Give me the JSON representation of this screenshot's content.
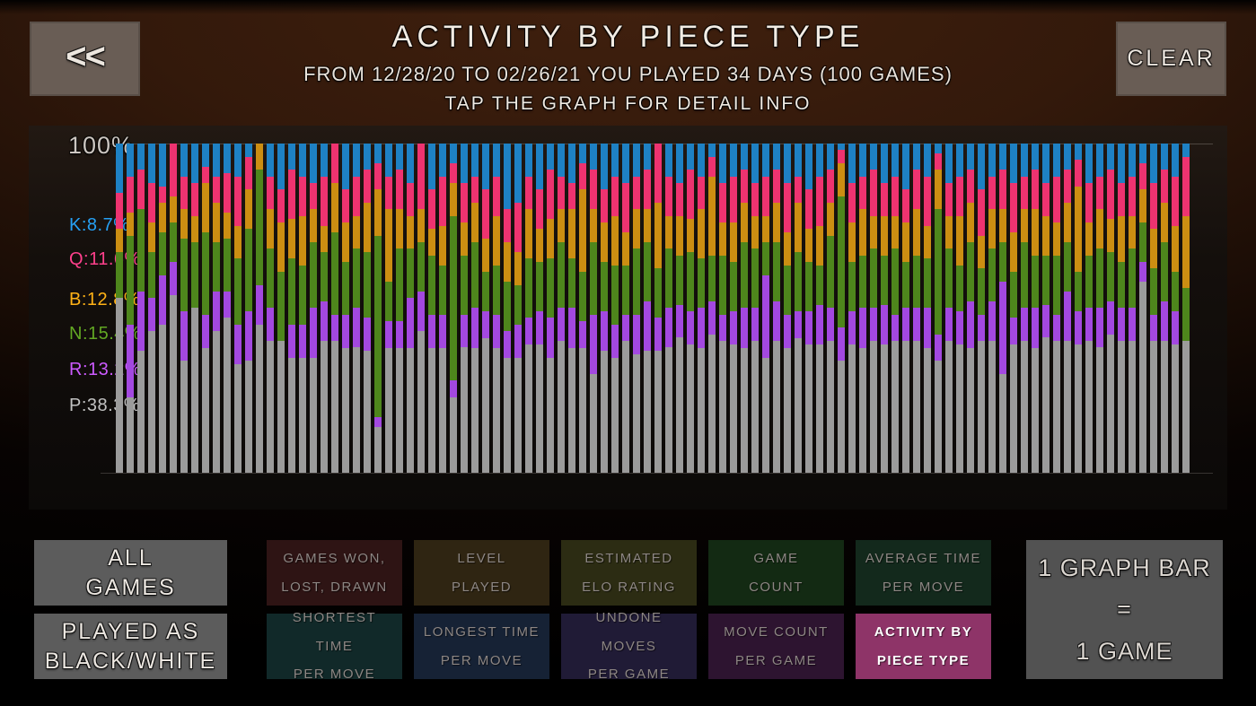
{
  "header": {
    "back_label": "<<",
    "title": "ACTIVITY BY PIECE TYPE",
    "subtitle": "FROM 12/28/20 TO 02/26/21 YOU PLAYED 34 DAYS (100 GAMES)",
    "hint": "TAP THE GRAPH FOR DETAIL INFO",
    "clear_label": "CLEAR"
  },
  "chart_data": {
    "type": "bar",
    "stacked": true,
    "units": "percent",
    "axis_max_label": "100%",
    "legend_position": "left",
    "grid": "top-line-only",
    "pieces": [
      {
        "key": "K",
        "label": "K:8.7%",
        "percent": 8.7,
        "color": "#1e81c4"
      },
      {
        "key": "Q",
        "label": "Q:11.6%",
        "percent": 11.6,
        "color": "#ee3370"
      },
      {
        "key": "B",
        "label": "B:12.8%",
        "percent": 12.8,
        "color": "#cc8e12"
      },
      {
        "key": "N",
        "label": "N:15.4%",
        "percent": 15.4,
        "color": "#4e861c"
      },
      {
        "key": "R",
        "label": "R:13.2%",
        "percent": 13.2,
        "color": "#a348e0"
      },
      {
        "key": "P",
        "label": "P:38.3%",
        "percent": 38.3,
        "color": "#9b9b9b"
      }
    ],
    "bar_meaning": "1 GRAPH BAR = 1 GAME",
    "bars": [
      [
        15,
        11,
        7,
        14,
        0,
        53
      ],
      [
        10,
        11,
        7,
        27,
        22,
        23
      ],
      [
        8,
        12,
        0,
        25,
        18,
        37
      ],
      [
        12,
        12,
        9,
        14,
        10,
        43
      ],
      [
        13,
        5,
        9,
        13,
        15,
        45
      ],
      [
        0,
        16,
        8,
        12,
        10,
        54
      ],
      [
        10,
        10,
        9,
        22,
        15,
        34
      ],
      [
        12,
        10,
        8,
        20,
        0,
        50
      ],
      [
        7,
        5,
        15,
        25,
        10,
        38
      ],
      [
        10,
        8,
        12,
        15,
        12,
        43
      ],
      [
        9,
        12,
        8,
        16,
        8,
        47
      ],
      [
        10,
        15,
        10,
        20,
        12,
        33
      ],
      [
        4,
        10,
        12,
        25,
        15,
        34
      ],
      [
        0,
        0,
        8,
        35,
        12,
        45
      ],
      [
        10,
        10,
        12,
        18,
        10,
        40
      ],
      [
        14,
        10,
        15,
        21,
        0,
        40
      ],
      [
        8,
        15,
        12,
        20,
        10,
        35
      ],
      [
        10,
        12,
        15,
        18,
        10,
        35
      ],
      [
        12,
        8,
        10,
        20,
        15,
        35
      ],
      [
        10,
        15,
        8,
        15,
        12,
        40
      ],
      [
        0,
        12,
        15,
        25,
        8,
        40
      ],
      [
        14,
        10,
        12,
        16,
        10,
        38
      ],
      [
        10,
        12,
        10,
        18,
        12,
        38
      ],
      [
        8,
        10,
        15,
        20,
        10,
        37
      ],
      [
        6,
        8,
        14,
        55,
        3,
        14
      ],
      [
        10,
        10,
        22,
        12,
        8,
        38
      ],
      [
        8,
        12,
        12,
        22,
        8,
        38
      ],
      [
        12,
        10,
        10,
        15,
        15,
        38
      ],
      [
        0,
        20,
        10,
        15,
        12,
        43
      ],
      [
        14,
        12,
        8,
        18,
        10,
        38
      ],
      [
        10,
        15,
        12,
        15,
        10,
        38
      ],
      [
        6,
        6,
        10,
        50,
        5,
        23
      ],
      [
        12,
        12,
        10,
        18,
        10,
        38
      ],
      [
        10,
        8,
        12,
        20,
        12,
        38
      ],
      [
        14,
        15,
        10,
        12,
        8,
        41
      ],
      [
        10,
        12,
        15,
        15,
        10,
        38
      ],
      [
        20,
        10,
        12,
        15,
        8,
        35
      ],
      [
        18,
        15,
        10,
        12,
        10,
        35
      ],
      [
        10,
        10,
        15,
        18,
        8,
        39
      ],
      [
        14,
        12,
        10,
        15,
        10,
        39
      ],
      [
        8,
        15,
        12,
        18,
        12,
        35
      ],
      [
        10,
        10,
        10,
        20,
        10,
        40
      ],
      [
        12,
        8,
        15,
        15,
        12,
        38
      ],
      [
        6,
        8,
        25,
        15,
        8,
        38
      ],
      [
        8,
        12,
        10,
        22,
        18,
        30
      ],
      [
        14,
        10,
        12,
        15,
        12,
        37
      ],
      [
        10,
        12,
        15,
        18,
        10,
        35
      ],
      [
        12,
        15,
        10,
        15,
        8,
        40
      ],
      [
        10,
        10,
        12,
        20,
        12,
        36
      ],
      [
        8,
        12,
        10,
        18,
        15,
        37
      ],
      [
        0,
        18,
        20,
        15,
        10,
        37
      ],
      [
        10,
        12,
        10,
        18,
        12,
        38
      ],
      [
        12,
        10,
        12,
        15,
        10,
        41
      ],
      [
        8,
        15,
        10,
        18,
        10,
        39
      ],
      [
        10,
        10,
        15,
        15,
        12,
        38
      ],
      [
        4,
        6,
        24,
        14,
        10,
        42
      ],
      [
        12,
        12,
        10,
        18,
        8,
        40
      ],
      [
        10,
        14,
        12,
        15,
        10,
        39
      ],
      [
        8,
        10,
        12,
        20,
        12,
        38
      ],
      [
        12,
        10,
        10,
        18,
        10,
        40
      ],
      [
        10,
        12,
        8,
        10,
        25,
        35
      ],
      [
        8,
        10,
        12,
        18,
        12,
        40
      ],
      [
        12,
        15,
        10,
        15,
        10,
        38
      ],
      [
        10,
        8,
        15,
        18,
        8,
        41
      ],
      [
        14,
        12,
        10,
        15,
        10,
        39
      ],
      [
        10,
        15,
        12,
        12,
        12,
        39
      ],
      [
        8,
        10,
        10,
        22,
        10,
        40
      ],
      [
        2,
        4,
        10,
        40,
        10,
        34
      ],
      [
        12,
        12,
        12,
        15,
        10,
        39
      ],
      [
        10,
        10,
        14,
        16,
        12,
        38
      ],
      [
        8,
        14,
        10,
        18,
        10,
        40
      ],
      [
        12,
        10,
        12,
        15,
        12,
        39
      ],
      [
        10,
        12,
        10,
        20,
        8,
        40
      ],
      [
        14,
        10,
        12,
        14,
        10,
        40
      ],
      [
        8,
        12,
        14,
        16,
        10,
        40
      ],
      [
        10,
        15,
        10,
        15,
        12,
        38
      ],
      [
        3,
        5,
        12,
        38,
        8,
        34
      ],
      [
        12,
        10,
        10,
        18,
        10,
        40
      ],
      [
        10,
        12,
        15,
        14,
        10,
        39
      ],
      [
        8,
        10,
        12,
        18,
        14,
        38
      ],
      [
        14,
        14,
        10,
        14,
        8,
        40
      ],
      [
        10,
        10,
        12,
        16,
        12,
        40
      ],
      [
        8,
        12,
        10,
        12,
        28,
        30
      ],
      [
        12,
        15,
        12,
        14,
        8,
        39
      ],
      [
        10,
        10,
        10,
        20,
        10,
        40
      ],
      [
        8,
        12,
        14,
        16,
        12,
        38
      ],
      [
        12,
        10,
        12,
        15,
        10,
        41
      ],
      [
        10,
        14,
        10,
        18,
        8,
        40
      ],
      [
        8,
        10,
        12,
        15,
        15,
        40
      ],
      [
        5,
        8,
        26,
        12,
        10,
        39
      ],
      [
        12,
        12,
        10,
        16,
        10,
        40
      ],
      [
        10,
        10,
        12,
        18,
        12,
        38
      ],
      [
        8,
        15,
        10,
        15,
        10,
        42
      ],
      [
        12,
        10,
        14,
        14,
        10,
        40
      ],
      [
        10,
        12,
        10,
        18,
        10,
        40
      ],
      [
        6,
        8,
        10,
        12,
        6,
        58
      ],
      [
        12,
        14,
        12,
        14,
        8,
        40
      ],
      [
        8,
        10,
        12,
        18,
        12,
        40
      ],
      [
        10,
        15,
        14,
        12,
        10,
        39
      ],
      [
        4,
        18,
        22,
        16,
        0,
        40
      ]
    ]
  },
  "footer": {
    "filters": [
      {
        "label": "ALL\nGAMES"
      },
      {
        "label": "PLAYED AS\nBLACK/WHITE"
      }
    ],
    "stat_buttons": [
      {
        "label": "GAMES WON,\nLOST, DRAWN",
        "color": "#2e1414",
        "active": false
      },
      {
        "label": "LEVEL\nPLAYED",
        "color": "#2f2512",
        "active": false
      },
      {
        "label": "ESTIMATED\nELO RATING",
        "color": "#2c2c13",
        "active": false
      },
      {
        "label": "GAME\nCOUNT",
        "color": "#132a13",
        "active": false
      },
      {
        "label": "AVERAGE TIME\nPER MOVE",
        "color": "#13291c",
        "active": false
      },
      {
        "label": "SHORTEST TIME\nPER MOVE",
        "color": "#112929",
        "active": false
      },
      {
        "label": "LONGEST TIME\nPER MOVE",
        "color": "#162235",
        "active": false
      },
      {
        "label": "UNDONE MOVES\nPER GAME",
        "color": "#201b36",
        "active": false
      },
      {
        "label": "MOVE COUNT\nPER GAME",
        "color": "#2d1430",
        "active": false
      },
      {
        "label": "ACTIVITY BY\nPIECE TYPE",
        "color": "#8e3468",
        "active": true
      }
    ],
    "info_box_lines": [
      "1 GRAPH BAR",
      "=",
      "1 GAME"
    ]
  }
}
